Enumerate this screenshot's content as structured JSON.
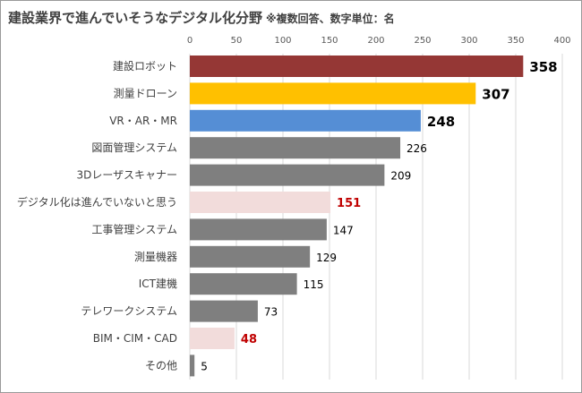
{
  "chart_data": {
    "type": "bar",
    "orientation": "horizontal",
    "title": "建設業界で進んでいそうなデジタル化分野",
    "subtitle": "※複数回答、数字単位：名",
    "xlim": [
      0,
      400
    ],
    "xticks": [
      0,
      50,
      100,
      150,
      200,
      250,
      300,
      350,
      400
    ],
    "grid": true,
    "categories": [
      "建設ロボット",
      "測量ドローン",
      "VR・AR・MR",
      "図面管理システム",
      "3Dレーザスキャナー",
      "デジタル化は進んでいないと思う",
      "工事管理システム",
      "測量機器",
      "ICT建機",
      "テレワークシステム",
      "BIM・CIM・CAD",
      "その他"
    ],
    "values": [
      358,
      307,
      248,
      226,
      209,
      151,
      147,
      129,
      115,
      73,
      48,
      5
    ],
    "colors": [
      "#953735",
      "#ffc000",
      "#558ed5",
      "#7f7f7f",
      "#7f7f7f",
      "#f2dcdb",
      "#7f7f7f",
      "#7f7f7f",
      "#7f7f7f",
      "#7f7f7f",
      "#f2dcdb",
      "#7f7f7f"
    ],
    "label_styles": [
      "big",
      "big",
      "big",
      "normal",
      "normal",
      "red",
      "normal",
      "normal",
      "normal",
      "normal",
      "red",
      "normal"
    ]
  }
}
